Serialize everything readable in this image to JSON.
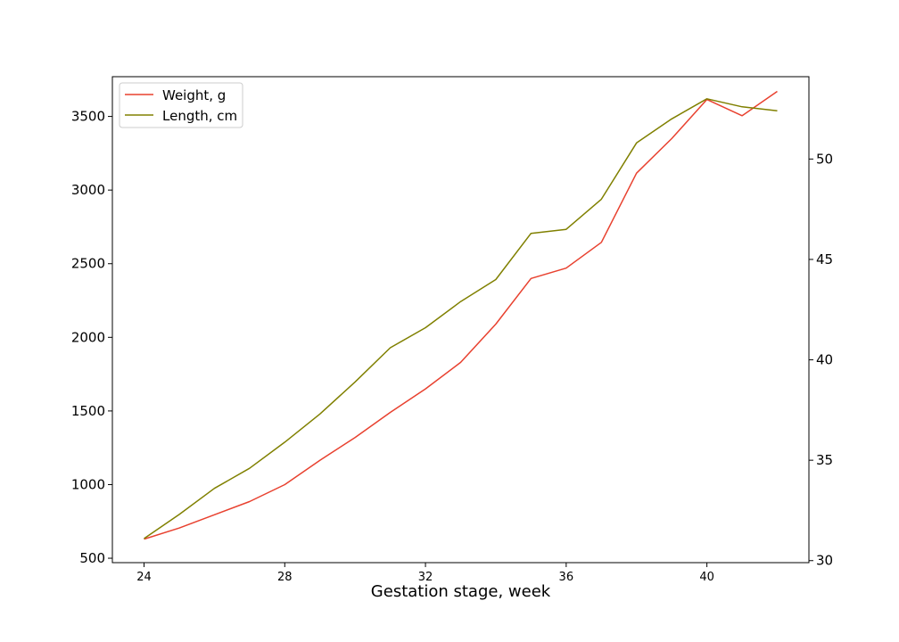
{
  "chart_data": {
    "type": "line",
    "xlabel": "Gestation stage, week",
    "ylabel_left": "",
    "ylabel_right": "",
    "x": [
      24,
      25,
      26,
      27,
      28,
      29,
      30,
      31,
      32,
      33,
      34,
      35,
      36,
      37,
      38,
      39,
      40,
      41,
      42
    ],
    "x_ticks": [
      "24",
      "28",
      "32",
      "36",
      "40"
    ],
    "xlim": [
      23.1,
      42.9
    ],
    "y_left_ticks": [
      "500",
      "1000",
      "1500",
      "2000",
      "2500",
      "3000",
      "3500"
    ],
    "y_left_lim": [
      470,
      3770
    ],
    "y_right_ticks": [
      "30",
      "35",
      "40",
      "45",
      "50"
    ],
    "y_right_lim": [
      29.9,
      54.1
    ],
    "legend_position": "upper-left",
    "grid": false,
    "series": [
      {
        "name": "Weight, g",
        "axis": "left",
        "color": "#e8412f",
        "values": [
          630,
          705,
          795,
          885,
          1000,
          1165,
          1320,
          1490,
          1650,
          1830,
          2090,
          2400,
          2470,
          2645,
          3115,
          3350,
          3615,
          3505,
          3670
        ]
      },
      {
        "name": "Length, cm",
        "axis": "right",
        "color": "#808000",
        "values": [
          31.1,
          32.3,
          33.6,
          34.6,
          35.9,
          37.3,
          38.9,
          40.6,
          41.6,
          42.9,
          44.0,
          46.3,
          46.5,
          48.0,
          50.8,
          52.0,
          53.0,
          52.6,
          52.4
        ]
      }
    ]
  }
}
